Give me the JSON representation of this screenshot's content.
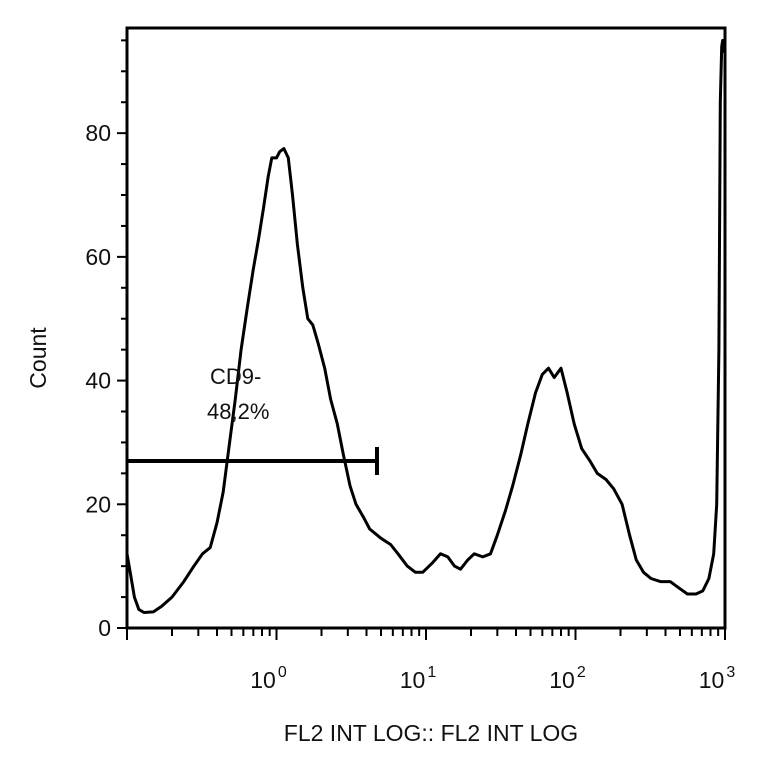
{
  "chart_data": {
    "type": "line",
    "title": "",
    "xlabel": "FL2 INT LOG:: FL2 INT LOG",
    "ylabel": "Count",
    "x_scale": "log",
    "xlim": [
      0.1,
      1000
    ],
    "ylim": [
      0,
      97
    ],
    "y_ticks": [
      "0",
      "20",
      "40",
      "60",
      "80"
    ],
    "x_ticks": [
      {
        "base": "10",
        "exp": "0",
        "value": 1
      },
      {
        "base": "10",
        "exp": "1",
        "value": 10
      },
      {
        "base": "10",
        "exp": "2",
        "value": 100
      },
      {
        "base": "10",
        "exp": "3",
        "value": 1000
      }
    ],
    "grid": false,
    "colors": {
      "line": "#000000",
      "axes": "#000000"
    },
    "series": [
      {
        "points": [
          [
            0.1,
            12
          ],
          [
            0.105,
            9
          ],
          [
            0.112,
            5
          ],
          [
            0.12,
            3
          ],
          [
            0.13,
            2.5
          ],
          [
            0.15,
            2.6
          ],
          [
            0.17,
            3.5
          ],
          [
            0.2,
            5
          ],
          [
            0.24,
            7.5
          ],
          [
            0.28,
            10
          ],
          [
            0.32,
            12
          ],
          [
            0.36,
            13
          ],
          [
            0.4,
            17
          ],
          [
            0.44,
            22
          ],
          [
            0.48,
            29
          ],
          [
            0.53,
            37
          ],
          [
            0.58,
            45
          ],
          [
            0.64,
            52
          ],
          [
            0.7,
            58
          ],
          [
            0.76,
            63
          ],
          [
            0.82,
            68
          ],
          [
            0.88,
            73
          ],
          [
            0.93,
            76
          ],
          [
            1.0,
            76
          ],
          [
            1.05,
            77
          ],
          [
            1.12,
            77.5
          ],
          [
            1.2,
            76
          ],
          [
            1.28,
            70
          ],
          [
            1.38,
            62
          ],
          [
            1.5,
            55
          ],
          [
            1.62,
            50
          ],
          [
            1.75,
            49
          ],
          [
            1.9,
            46
          ],
          [
            2.1,
            42
          ],
          [
            2.3,
            37
          ],
          [
            2.55,
            33
          ],
          [
            2.8,
            28
          ],
          [
            3.1,
            23
          ],
          [
            3.4,
            20
          ],
          [
            3.8,
            18
          ],
          [
            4.2,
            16
          ],
          [
            5.0,
            14.5
          ],
          [
            5.8,
            13.5
          ],
          [
            6.5,
            12
          ],
          [
            7.5,
            10
          ],
          [
            8.5,
            9
          ],
          [
            9.5,
            9
          ],
          [
            11.0,
            10.5
          ],
          [
            12.5,
            12
          ],
          [
            14.0,
            11.5
          ],
          [
            15.5,
            10
          ],
          [
            17.0,
            9.5
          ],
          [
            19.0,
            11
          ],
          [
            21.0,
            12
          ],
          [
            24.0,
            11.5
          ],
          [
            27.0,
            12
          ],
          [
            30.0,
            15
          ],
          [
            34.0,
            19
          ],
          [
            38.0,
            23
          ],
          [
            43.0,
            28
          ],
          [
            48.0,
            33
          ],
          [
            54.0,
            38
          ],
          [
            60.0,
            41
          ],
          [
            66.0,
            42
          ],
          [
            72.0,
            40.5
          ],
          [
            80.0,
            42
          ],
          [
            88.0,
            38
          ],
          [
            98.0,
            33
          ],
          [
            110.0,
            29
          ],
          [
            125.0,
            27
          ],
          [
            140.0,
            25
          ],
          [
            160.0,
            24
          ],
          [
            180.0,
            22.5
          ],
          [
            205.0,
            20
          ],
          [
            230.0,
            15
          ],
          [
            255.0,
            11
          ],
          [
            285.0,
            9
          ],
          [
            320.0,
            8
          ],
          [
            370.0,
            7.5
          ],
          [
            430.0,
            7.5
          ],
          [
            490.0,
            6.5
          ],
          [
            560.0,
            5.5
          ],
          [
            640.0,
            5.5
          ],
          [
            710.0,
            6
          ],
          [
            780.0,
            8
          ],
          [
            840.0,
            12
          ],
          [
            880.0,
            20
          ],
          [
            910.0,
            45
          ],
          [
            930.0,
            85
          ],
          [
            950.0,
            94
          ],
          [
            965.0,
            95
          ],
          [
            985.0,
            93
          ]
        ]
      }
    ],
    "annotations": {
      "gate": {
        "label_line1": "CD9-",
        "label_line2": "48,2%",
        "x_start": 0.1,
        "x_end": 4.7,
        "y": 27
      }
    }
  }
}
